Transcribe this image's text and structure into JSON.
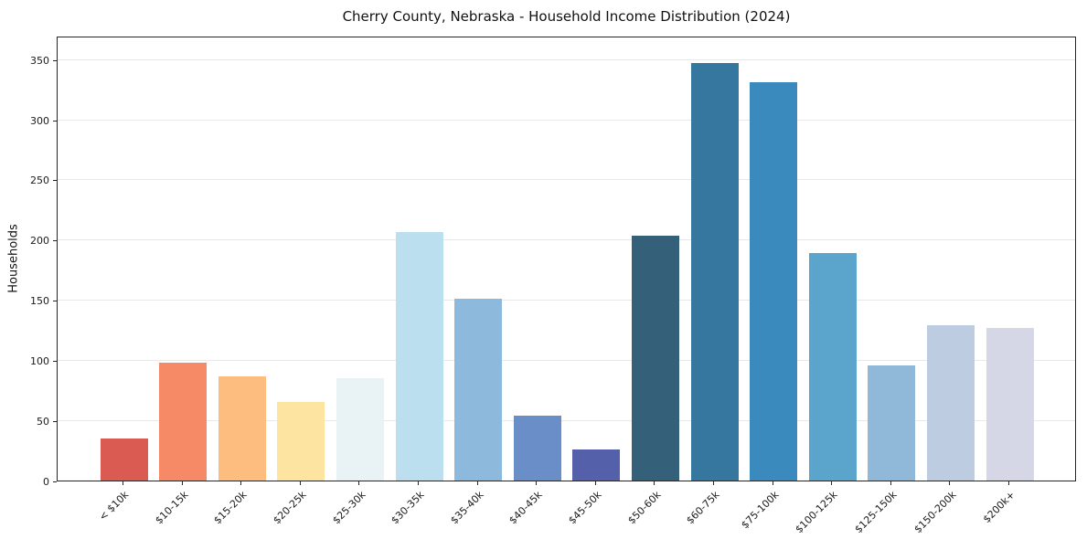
{
  "title": "Cherry County, Nebraska - Household Income Distribution (2024)",
  "chart_data": {
    "type": "bar",
    "title": "Cherry County, Nebraska - Household Income Distribution (2024)",
    "xlabel": "",
    "ylabel": "Households",
    "categories": [
      "< $10k",
      "$10-15k",
      "$15-20k",
      "$20-25k",
      "$25-30k",
      "$30-35k",
      "$35-40k",
      "$40-45k",
      "$45-50k",
      "$50-60k",
      "$60-75k",
      "$75-100k",
      "$100-125k",
      "$125-150k",
      "$150-200k",
      "$200k+"
    ],
    "values": [
      35,
      98,
      87,
      65,
      85,
      207,
      151,
      54,
      26,
      204,
      347,
      331,
      189,
      96,
      129,
      127
    ],
    "bar_colors": [
      "#d95b52",
      "#f68a67",
      "#fcbd7e",
      "#fde5a1",
      "#e9f3f6",
      "#bbdfee",
      "#8cb9dc",
      "#6a8fc8",
      "#5560ab",
      "#346179",
      "#36779f",
      "#3a8abd",
      "#5ba5cc",
      "#90b8d9",
      "#bdcce1",
      "#d6d7e6"
    ],
    "yticks": [
      0,
      50,
      100,
      150,
      200,
      250,
      300,
      350
    ],
    "ylim": [
      0,
      370
    ],
    "grid": true,
    "grid_axis": "y",
    "legend": false,
    "tick_rotation_deg": 45
  },
  "colors": {
    "background": "#ffffff",
    "axis": "#262626",
    "grid": "#e8e8e8",
    "text": "#1a1a1a"
  }
}
